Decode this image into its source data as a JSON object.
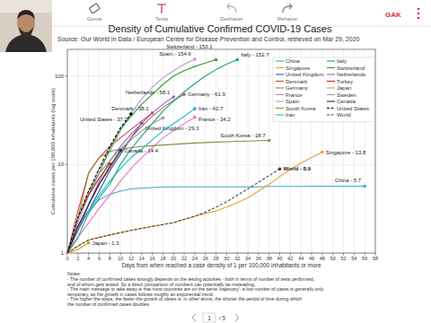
{
  "toolbar": {
    "items": [
      "Goma",
      "Texto",
      "Deshacer",
      "Rehacer"
    ],
    "user": "GAK"
  },
  "chart_data": {
    "type": "line",
    "title": "Density of Cumulative Confirmed COVID-19 Cases",
    "subtitle": "Source: Our World In Data / European Centre for Disease Prevention and Control, retrieved on Mar 29, 2020",
    "x_label": "Days from when reached a case density of 1 per 100,000 inhabitants or more",
    "y_label": "Cumulative cases per 100,000 inhabitants (log scale)",
    "log": "y",
    "grid": true,
    "legend": "top-right",
    "marker": "circle",
    "xlim": [
      0,
      58
    ],
    "xticks": [
      0,
      2,
      4,
      6,
      8,
      10,
      12,
      14,
      16,
      18,
      20,
      22,
      24,
      26,
      28,
      30,
      32,
      34,
      36,
      38,
      40,
      42,
      44,
      46,
      48,
      50,
      52,
      54,
      56,
      58
    ],
    "ylim": [
      1,
      200
    ],
    "yticks": [
      1,
      10,
      100
    ],
    "x": [
      0,
      2,
      4,
      6,
      8,
      10,
      12,
      14,
      16,
      18,
      20,
      22,
      24,
      26,
      28,
      30,
      32,
      34,
      36,
      38,
      40,
      42,
      44,
      46,
      48,
      50,
      52,
      54,
      56
    ],
    "series": [
      {
        "name": "China",
        "color": "#3fa7d6",
        "end_label": "China - 5.7",
        "values": [
          1,
          2,
          3,
          4,
          4.6,
          5,
          5.3,
          5.4,
          5.5,
          5.55,
          5.6,
          5.6,
          5.6,
          5.6,
          5.6,
          5.6,
          5.6,
          5.6,
          5.6,
          5.65,
          5.65,
          5.65,
          5.65,
          5.7,
          5.7,
          5.7,
          5.7,
          5.7,
          5.7
        ]
      },
      {
        "name": "Singapore",
        "color": "#e6a23c",
        "end_label": "Singapore - 13.8",
        "values": [
          1,
          1.2,
          1.4,
          1.5,
          1.6,
          1.7,
          1.8,
          1.9,
          2,
          2.1,
          2.2,
          2.4,
          2.6,
          2.8,
          3,
          3.3,
          3.7,
          4.2,
          5,
          6,
          7.3,
          8.8,
          10.4,
          12,
          13.8,
          null,
          null,
          null,
          null
        ]
      },
      {
        "name": "United Kingdom",
        "color": "#1f5fbf",
        "end_label": "United Kingdom - 29.3",
        "values": [
          1,
          1.8,
          3,
          5,
          8.5,
          13,
          20,
          29.3,
          null,
          null,
          null,
          null,
          null,
          null,
          null,
          null,
          null,
          null,
          null,
          null,
          null,
          null,
          null,
          null,
          null,
          null,
          null,
          null,
          null
        ]
      },
      {
        "name": "Denmark",
        "color": "#e04040",
        "end_label": "Denmark - 38.1",
        "values": [
          1,
          3,
          8,
          12,
          16,
          20,
          25,
          31,
          38.1,
          null,
          null,
          null,
          null,
          null,
          null,
          null,
          null,
          null,
          null,
          null,
          null,
          null,
          null,
          null,
          null,
          null,
          null,
          null,
          null
        ]
      },
      {
        "name": "Germany",
        "color": "#b5655a",
        "end_label": "Germany - 61.9",
        "values": [
          1,
          1.8,
          3.5,
          6,
          9,
          14,
          20,
          27,
          35,
          44,
          53,
          61.9,
          null,
          null,
          null,
          null,
          null,
          null,
          null,
          null,
          null,
          null,
          null,
          null,
          null,
          null,
          null,
          null,
          null
        ]
      },
      {
        "name": "France",
        "color": "#e377c2",
        "end_label": "France - 34.2",
        "values": [
          1,
          1.5,
          2.2,
          3.2,
          4.5,
          6.5,
          9,
          12,
          15.5,
          20,
          24,
          29,
          34.2,
          null,
          null,
          null,
          null,
          null,
          null,
          null,
          null,
          null,
          null,
          null,
          null,
          null,
          null,
          null,
          null
        ]
      },
      {
        "name": "Spain",
        "color": "#b99ad6",
        "end_label": "Spain - 154.6",
        "values": [
          1,
          2.2,
          4.5,
          9,
          14,
          24,
          38,
          55,
          75,
          95,
          115,
          135,
          154.6,
          null,
          null,
          null,
          null,
          null,
          null,
          null,
          null,
          null,
          null,
          null,
          null,
          null,
          null,
          null,
          null
        ]
      },
      {
        "name": "South Korea",
        "color": "#8c8c3a",
        "end_label": "South Korea - 18.7",
        "values": [
          1,
          2.5,
          8,
          12,
          14,
          15,
          15.5,
          16,
          16.3,
          16.6,
          16.9,
          17.2,
          17.5,
          17.7,
          17.9,
          18.1,
          18.3,
          18.4,
          18.6,
          18.7,
          null,
          null,
          null,
          null,
          null,
          null,
          null,
          null,
          null
        ]
      },
      {
        "name": "Iran",
        "color": "#17becf",
        "end_label": "Iran - 42.7",
        "values": [
          1,
          2,
          3,
          4.5,
          6.5,
          9,
          12,
          15,
          19,
          24,
          29,
          35,
          42.7,
          null,
          null,
          null,
          null,
          null,
          null,
          null,
          null,
          null,
          null,
          null,
          null,
          null,
          null,
          null,
          null
        ]
      },
      {
        "name": "Italy",
        "color": "#1aa37a",
        "end_label": "Italy - 152.7",
        "values": [
          1,
          1.5,
          2.8,
          4.2,
          6,
          10,
          15,
          21,
          29,
          40,
          52,
          66,
          82,
          100,
          118,
          136,
          152.7,
          null,
          null,
          null,
          null,
          null,
          null,
          null,
          null,
          null,
          null,
          null,
          null
        ]
      },
      {
        "name": "Switzerland",
        "color": "#2ca02c",
        "end_label": "Switzerland - 153.1",
        "values": [
          1,
          2.5,
          4.5,
          8,
          15,
          25,
          35,
          48,
          62,
          80,
          100,
          115,
          128,
          140,
          153.1,
          null,
          null,
          null,
          null,
          null,
          null,
          null,
          null,
          null,
          null,
          null,
          null,
          null,
          null
        ]
      },
      {
        "name": "Netherlands",
        "color": "#9467bd",
        "end_label": "Netherlands - 58.1",
        "values": [
          1,
          1.8,
          3.5,
          6.5,
          11,
          16,
          22,
          29,
          38,
          48,
          58.1,
          null,
          null,
          null,
          null,
          null,
          null,
          null,
          null,
          null,
          null,
          null,
          null,
          null,
          null,
          null,
          null,
          null,
          null
        ]
      },
      {
        "name": "Turkey",
        "color": "#d62728",
        "values": [
          1,
          2.5,
          4.5,
          7,
          10.2,
          null,
          null,
          null,
          null,
          null,
          null,
          null,
          null,
          null,
          null,
          null,
          null,
          null,
          null,
          null,
          null,
          null,
          null,
          null,
          null,
          null,
          null,
          null,
          null
        ]
      },
      {
        "name": "Japan",
        "color": "#c8a02a",
        "end_label": "Japan - 1.3",
        "values": [
          1,
          1.1,
          1.3,
          null,
          null,
          null,
          null,
          null,
          null,
          null,
          null,
          null,
          null,
          null,
          null,
          null,
          null,
          null,
          null,
          null,
          null,
          null,
          null,
          null,
          null,
          null,
          null,
          null,
          null
        ]
      },
      {
        "name": "Sweden",
        "color": "#999999",
        "values": [
          1,
          2.5,
          5,
          8,
          11,
          15,
          19,
          24,
          29,
          33.5,
          null,
          null,
          null,
          null,
          null,
          null,
          null,
          null,
          null,
          null,
          null,
          null,
          null,
          null,
          null,
          null,
          null,
          null,
          null
        ]
      },
      {
        "name": "Canada",
        "color": "#222222",
        "end_label": "Canada - 14.4",
        "values": [
          1,
          2,
          3.5,
          6,
          9.5,
          14.4,
          null,
          null,
          null,
          null,
          null,
          null,
          null,
          null,
          null,
          null,
          null,
          null,
          null,
          null,
          null,
          null,
          null,
          null,
          null,
          null,
          null,
          null,
          null
        ]
      },
      {
        "name": "United States",
        "color": "#000000",
        "line_style": "dashed",
        "end_label": "United States - 37.2",
        "values": [
          1,
          2.5,
          5,
          9,
          16,
          26,
          37.2,
          null,
          null,
          null,
          null,
          null,
          null,
          null,
          null,
          null,
          null,
          null,
          null,
          null,
          null,
          null,
          null,
          null,
          null,
          null,
          null,
          null,
          null
        ]
      },
      {
        "name": "World",
        "color": "#444444",
        "line_style": "dashed",
        "end_label": "World - 8.9",
        "values": [
          1,
          1.2,
          1.4,
          1.5,
          1.6,
          1.7,
          1.8,
          1.9,
          2,
          2.1,
          2.2,
          2.4,
          2.6,
          2.9,
          3.3,
          3.8,
          4.5,
          5.3,
          6.3,
          7.5,
          8.9,
          null,
          null,
          null,
          null,
          null,
          null,
          null,
          null
        ]
      }
    ]
  },
  "notes": {
    "title": "Notes:",
    "lines": [
      "- The number of confirmed cases strongly depends on the testing activities - both in terms of number of tests performed,",
      "  and of whom gets tested. So a direct comparison of numbers can potentially be misleading.",
      "- The main message to take away is that most countries are on the same 'trajectory': a low number of cases is generally only",
      "  temporary, as the growth in cases follows roughly an exponential trend.",
      "- The higher the slope, the faster the growth of cases is. In other terms, the shorter the period of time during which",
      "  the number of confirmed cases doubles."
    ]
  },
  "pager": {
    "page": 1,
    "pages_label": "/ 5"
  }
}
